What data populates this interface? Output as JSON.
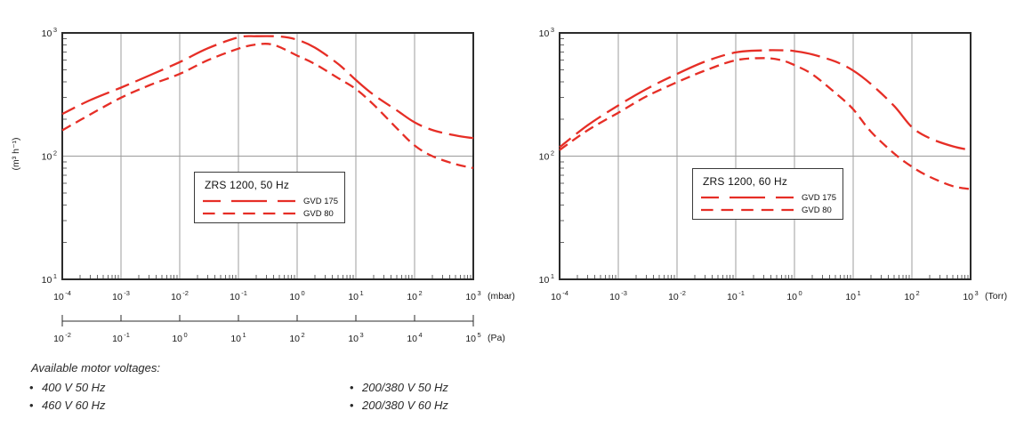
{
  "colors": {
    "curve_red": "#e62e26",
    "grid": "#9c9c9c",
    "minor_tick": "#666666",
    "border": "#2b2b2b",
    "text": "#1a1a1a"
  },
  "footer": {
    "heading": "Available motor voltages:",
    "bullet": "•",
    "col1": [
      "400 V 50 Hz",
      "460 V 60 Hz"
    ],
    "col2": [
      "200/380 V 50 Hz",
      "200/380 V 60 Hz"
    ]
  },
  "chart_data": [
    {
      "type": "line",
      "title": "ZRS 1200, 50 Hz",
      "scale": "log-log",
      "ylabel": "(m³ h⁻¹)",
      "xlim": [
        0.0001,
        1000
      ],
      "ylim": [
        10,
        1000
      ],
      "xlim_exp": [
        -4,
        3
      ],
      "ylim_exp": [
        1,
        3
      ],
      "grid": "decade-vertical-plus-100-horizontal",
      "legend_position": "bottom-center",
      "x_axis": {
        "unit": "(mbar)",
        "tick_exponents": [
          -4,
          -3,
          -2,
          -1,
          0,
          1,
          2,
          3
        ]
      },
      "x_axis_secondary": {
        "unit": "(Pa)",
        "tick_exponents": [
          -2,
          -1,
          0,
          1,
          2,
          3,
          4,
          5
        ]
      },
      "y_axis": {
        "tick_exponents": [
          1,
          2,
          3
        ]
      },
      "series": [
        {
          "name": "GVD 175",
          "dash": "long",
          "points": [
            [
              0.0001,
              220
            ],
            [
              0.0003,
              285
            ],
            [
              0.001,
              360
            ],
            [
              0.003,
              450
            ],
            [
              0.01,
              580
            ],
            [
              0.03,
              750
            ],
            [
              0.1,
              920
            ],
            [
              0.2,
              940
            ],
            [
              0.5,
              935
            ],
            [
              1,
              880
            ],
            [
              2,
              760
            ],
            [
              5,
              560
            ],
            [
              10,
              415
            ],
            [
              20,
              315
            ],
            [
              50,
              235
            ],
            [
              100,
              188
            ],
            [
              200,
              163
            ],
            [
              500,
              147
            ],
            [
              1000,
              140
            ]
          ]
        },
        {
          "name": "GVD 80",
          "dash": "short",
          "points": [
            [
              0.0001,
              162
            ],
            [
              0.0003,
              218
            ],
            [
              0.001,
              298
            ],
            [
              0.003,
              375
            ],
            [
              0.01,
              465
            ],
            [
              0.03,
              600
            ],
            [
              0.1,
              745
            ],
            [
              0.2,
              805
            ],
            [
              0.4,
              800
            ],
            [
              1,
              655
            ],
            [
              2,
              560
            ],
            [
              5,
              430
            ],
            [
              10,
              350
            ],
            [
              20,
              262
            ],
            [
              50,
              168
            ],
            [
              100,
              122
            ],
            [
              200,
              100
            ],
            [
              500,
              86
            ],
            [
              1000,
              80
            ]
          ]
        }
      ]
    },
    {
      "type": "line",
      "title": "ZRS 1200, 60 Hz",
      "scale": "log-log",
      "ylabel": "",
      "xlim": [
        0.0001,
        1000
      ],
      "ylim": [
        10,
        1000
      ],
      "xlim_exp": [
        -4,
        3
      ],
      "ylim_exp": [
        1,
        3
      ],
      "grid": "decade-vertical-plus-100-horizontal",
      "legend_position": "bottom-center",
      "x_axis": {
        "unit": "(Torr)",
        "tick_exponents": [
          -4,
          -3,
          -2,
          -1,
          0,
          1,
          2,
          3
        ]
      },
      "y_axis": {
        "tick_exponents": [
          1,
          2,
          3
        ]
      },
      "series": [
        {
          "name": "GVD 175",
          "dash": "long",
          "points": [
            [
              0.0001,
              118
            ],
            [
              0.0003,
              178
            ],
            [
              0.001,
              258
            ],
            [
              0.003,
              350
            ],
            [
              0.01,
              465
            ],
            [
              0.03,
              585
            ],
            [
              0.1,
              695
            ],
            [
              0.3,
              722
            ],
            [
              0.7,
              722
            ],
            [
              1,
              712
            ],
            [
              2,
              670
            ],
            [
              5,
              585
            ],
            [
              10,
              495
            ],
            [
              20,
              385
            ],
            [
              50,
              255
            ],
            [
              100,
              172
            ],
            [
              200,
              140
            ],
            [
              500,
              120
            ],
            [
              1000,
              112
            ]
          ]
        },
        {
          "name": "GVD 80",
          "dash": "short",
          "points": [
            [
              0.0001,
              112
            ],
            [
              0.0003,
              162
            ],
            [
              0.001,
              225
            ],
            [
              0.003,
              305
            ],
            [
              0.01,
              398
            ],
            [
              0.03,
              495
            ],
            [
              0.1,
              600
            ],
            [
              0.3,
              625
            ],
            [
              0.6,
              600
            ],
            [
              1,
              548
            ],
            [
              2,
              462
            ],
            [
              5,
              325
            ],
            [
              10,
              240
            ],
            [
              20,
              158
            ],
            [
              50,
              105
            ],
            [
              100,
              82
            ],
            [
              200,
              68
            ],
            [
              500,
              57
            ],
            [
              1000,
              54
            ]
          ]
        }
      ]
    }
  ]
}
